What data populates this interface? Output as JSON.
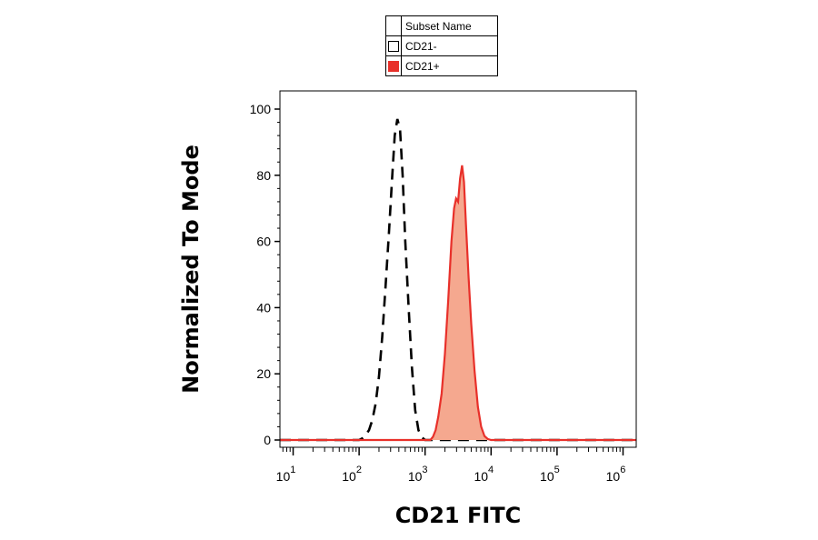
{
  "legend": {
    "header": "Subset Name",
    "entries": [
      {
        "label": "CD21-",
        "style": "open",
        "color": "#000000"
      },
      {
        "label": "CD21+",
        "style": "filled",
        "color": "#e8302a"
      }
    ]
  },
  "chart_data": {
    "type": "area",
    "xlabel": "CD21 FITC",
    "ylabel": "Normalized To Mode",
    "x_scale": "log",
    "xlim_log10": [
      0.8,
      6.2
    ],
    "ylim": [
      0,
      100
    ],
    "x_ticks": [
      {
        "base": "10",
        "exp": "1",
        "log10": 1
      },
      {
        "base": "10",
        "exp": "2",
        "log10": 2
      },
      {
        "base": "10",
        "exp": "3",
        "log10": 3
      },
      {
        "base": "10",
        "exp": "4",
        "log10": 4
      },
      {
        "base": "10",
        "exp": "5",
        "log10": 5
      },
      {
        "base": "10",
        "exp": "6",
        "log10": 6
      }
    ],
    "y_ticks": [
      "0",
      "20",
      "40",
      "60",
      "80",
      "100"
    ],
    "grid": false,
    "legend_position": "top-center",
    "series": [
      {
        "name": "CD21-",
        "style": "dashed-outline",
        "color": "#000000",
        "points": [
          [
            0.8,
            0
          ],
          [
            2.0,
            0
          ],
          [
            2.05,
            0.5
          ],
          [
            2.1,
            1.5
          ],
          [
            2.15,
            3
          ],
          [
            2.2,
            6
          ],
          [
            2.25,
            11
          ],
          [
            2.3,
            19
          ],
          [
            2.35,
            31
          ],
          [
            2.4,
            46
          ],
          [
            2.45,
            62
          ],
          [
            2.5,
            79
          ],
          [
            2.54,
            92
          ],
          [
            2.58,
            97
          ],
          [
            2.62,
            94
          ],
          [
            2.66,
            80
          ],
          [
            2.7,
            60
          ],
          [
            2.75,
            40
          ],
          [
            2.8,
            22
          ],
          [
            2.85,
            9
          ],
          [
            2.9,
            3
          ],
          [
            2.95,
            0.8
          ],
          [
            3.0,
            0
          ],
          [
            6.2,
            0
          ]
        ]
      },
      {
        "name": "CD21+",
        "style": "filled",
        "color": "#e8302a",
        "fill": "#f5a88f",
        "points": [
          [
            0.8,
            0
          ],
          [
            3.08,
            0
          ],
          [
            3.12,
            1
          ],
          [
            3.16,
            3
          ],
          [
            3.2,
            7
          ],
          [
            3.25,
            14
          ],
          [
            3.3,
            26
          ],
          [
            3.35,
            42
          ],
          [
            3.4,
            60
          ],
          [
            3.44,
            70
          ],
          [
            3.47,
            73
          ],
          [
            3.5,
            72
          ],
          [
            3.53,
            79
          ],
          [
            3.56,
            83
          ],
          [
            3.59,
            78
          ],
          [
            3.62,
            65
          ],
          [
            3.66,
            49
          ],
          [
            3.7,
            35
          ],
          [
            3.75,
            21
          ],
          [
            3.8,
            10
          ],
          [
            3.85,
            4
          ],
          [
            3.9,
            1.2
          ],
          [
            3.95,
            0.3
          ],
          [
            4.0,
            0
          ],
          [
            6.2,
            0
          ]
        ]
      }
    ]
  }
}
